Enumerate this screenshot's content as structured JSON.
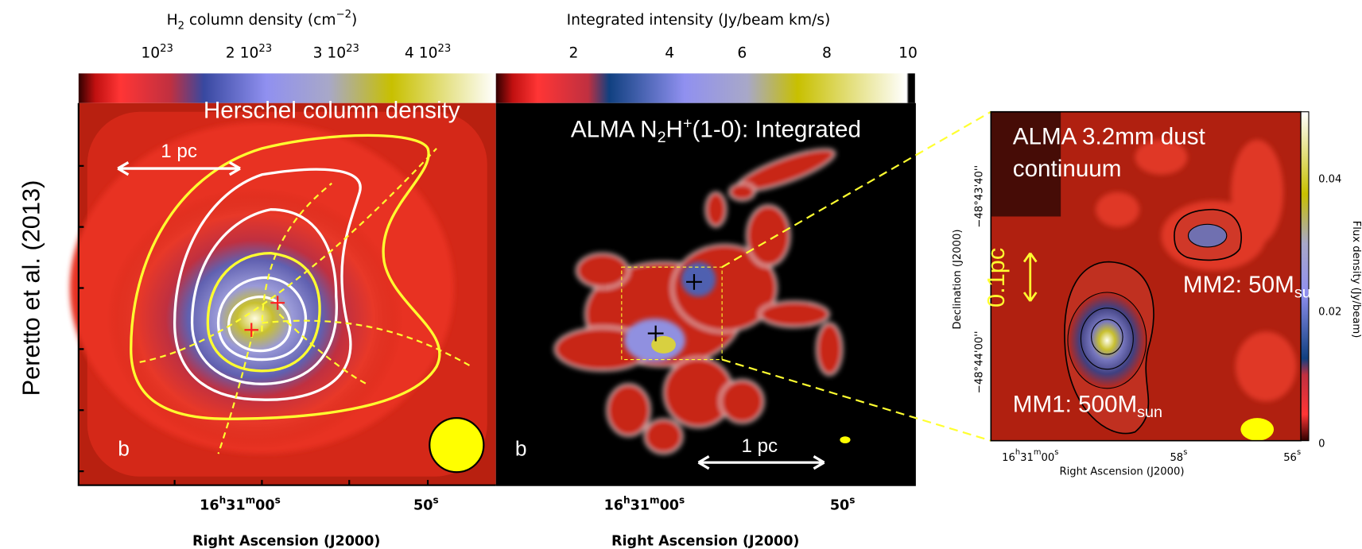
{
  "side_label": "Peretto et al. (2013)",
  "panel_1": {
    "colorbar_title": [
      "H",
      "2",
      " column density (cm",
      "−2",
      ")"
    ],
    "colorbar_ticks": [
      [
        "10",
        "23"
      ],
      [
        "2 10",
        "23"
      ],
      [
        "3 10",
        "23"
      ],
      [
        "4 10",
        "23"
      ]
    ],
    "title": "Herschel column density",
    "scale": "1 pc",
    "label": "b",
    "x_ticks": [
      [
        "16",
        "h",
        "31",
        "m",
        "00",
        "s"
      ],
      [
        "50",
        "s"
      ]
    ],
    "x_axis_label": "Right Ascension (J2000)"
  },
  "panel_2": {
    "colorbar_title": "Integrated intensity (Jy/beam km/s)",
    "colorbar_ticks": [
      "2",
      "4",
      "6",
      "8",
      "10"
    ],
    "title": [
      "ALMA N",
      "2",
      "H",
      "+",
      "(1-0): Integrated"
    ],
    "scale": "1 pc",
    "label": "b",
    "x_ticks": [
      [
        "16",
        "h",
        "31",
        "m",
        "00",
        "s"
      ],
      [
        "50",
        "s"
      ]
    ],
    "x_axis_label": "Right Ascension (J2000)"
  },
  "panel_3": {
    "title": [
      "ALMA 3.2mm dust",
      "continuum"
    ],
    "scale": "0.1pc",
    "mm2": [
      "MM2: 50M",
      "sun"
    ],
    "mm1": [
      "MM1: 500M",
      "sun"
    ],
    "y_ticks": [
      "−48°43'40''",
      "−48°44'00''"
    ],
    "y_axis_label": "Declination (J2000)",
    "x_ticks": [
      [
        "16",
        "h",
        "31",
        "m",
        "00",
        "s"
      ],
      [
        "58",
        "s"
      ],
      [
        "56",
        "s"
      ]
    ],
    "x_axis_label": "Right Ascension (J2000)",
    "colorbar_ticks": [
      "0.04",
      "0.02",
      "0"
    ],
    "colorbar_label": "Flux density (Jy/beam)"
  }
}
